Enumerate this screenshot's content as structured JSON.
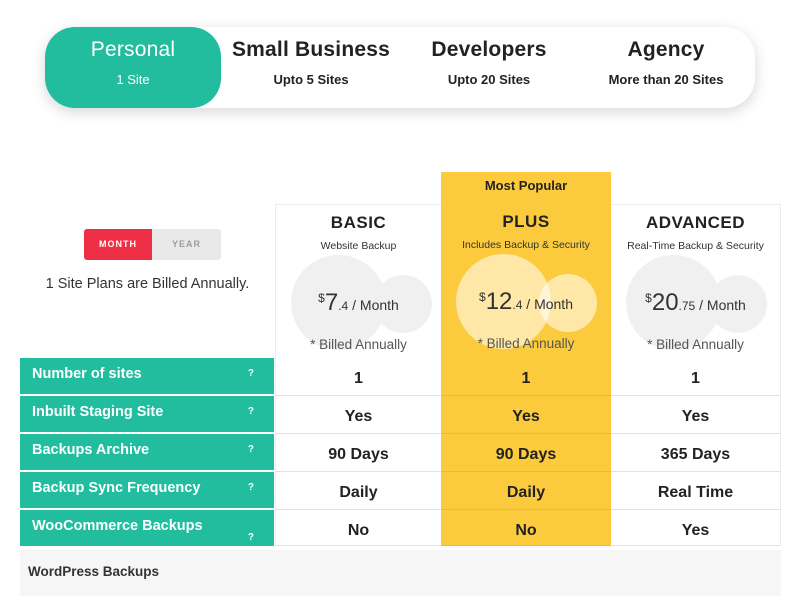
{
  "tabs": [
    {
      "title": "Personal",
      "sub": "1 Site"
    },
    {
      "title": "Small Business",
      "sub": "Upto 5 Sites"
    },
    {
      "title": "Developers",
      "sub": "Upto 20 Sites"
    },
    {
      "title": "Agency",
      "sub": "More than 20 Sites"
    }
  ],
  "billing": {
    "month_label": "MONTH",
    "year_label": "YEAR",
    "note": "1 Site Plans are Billed Annually."
  },
  "colors": {
    "accent": "#21bd9e",
    "highlight": "#fccb3d",
    "toggle_active": "#ef2f46"
  },
  "plans": [
    {
      "name": "BASIC",
      "desc": "Website Backup",
      "currency": "$",
      "amount": "7",
      "cents": ".4",
      "period": " / Month",
      "billed": "* Billed Annually"
    },
    {
      "name": "PLUS",
      "desc": "Includes Backup & Security",
      "badge": "Most Popular",
      "currency": "$",
      "amount": "12",
      "cents": ".4",
      "period": " / Month",
      "billed": "* Billed Annually"
    },
    {
      "name": "ADVANCED",
      "desc": "Real-Time Backup & Security",
      "currency": "$",
      "amount": "20",
      "cents": ".75",
      "period": " / Month",
      "billed": "* Billed Annually"
    }
  ],
  "features": [
    {
      "label": "Number of sites",
      "help": "?",
      "values": [
        "1",
        "1",
        "1"
      ]
    },
    {
      "label": "Inbuilt Staging Site",
      "help": "?",
      "values": [
        "Yes",
        "Yes",
        "Yes"
      ]
    },
    {
      "label": "Backups Archive",
      "help": "?",
      "values": [
        "90 Days",
        "90 Days",
        "365 Days"
      ]
    },
    {
      "label": "Backup Sync Frequency",
      "help": "?",
      "values": [
        "Daily",
        "Daily",
        "Real Time"
      ]
    },
    {
      "label": "WooCommerce Backups",
      "help": "?",
      "values": [
        "No",
        "No",
        "Yes"
      ]
    }
  ],
  "section": {
    "label": "WordPress Backups"
  }
}
